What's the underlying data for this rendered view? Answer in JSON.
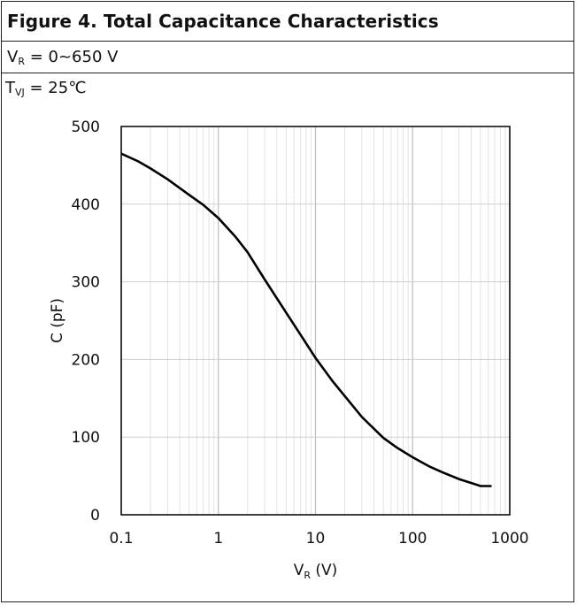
{
  "header": {
    "title": "Figure 4. Total Capacitance Characteristics",
    "condition_var": "V",
    "condition_sub": "R",
    "condition_rest": " = 0~650 V"
  },
  "annotation": {
    "var": "T",
    "sub": "VJ",
    "rest": " = 25℃"
  },
  "chart_data": {
    "type": "line",
    "title": "",
    "xscale": "log",
    "xlim": [
      0.1,
      1000
    ],
    "ylim": [
      0,
      500
    ],
    "xticks": [
      0.1,
      1,
      10,
      100,
      1000
    ],
    "xtick_labels": [
      "0.1",
      "1",
      "10",
      "100",
      "1000"
    ],
    "yticks": [
      0,
      100,
      200,
      300,
      400,
      500
    ],
    "ytick_labels": [
      "0",
      "100",
      "200",
      "300",
      "400",
      "500"
    ],
    "xlabel_var": "V",
    "xlabel_sub": "R",
    "xlabel_rest": " (V)",
    "ylabel": "C (pF)",
    "grid": true,
    "series": [
      {
        "x": [
          0.1,
          0.15,
          0.2,
          0.3,
          0.5,
          0.7,
          1,
          1.5,
          2,
          3,
          5,
          7,
          10,
          15,
          20,
          30,
          50,
          70,
          100,
          150,
          200,
          300,
          400,
          500,
          650
        ],
        "y": [
          465,
          455,
          446,
          432,
          412,
          399,
          382,
          358,
          338,
          303,
          260,
          232,
          202,
          172,
          153,
          126,
          99,
          86,
          74,
          62,
          55,
          46,
          41,
          37,
          37
        ]
      }
    ]
  }
}
